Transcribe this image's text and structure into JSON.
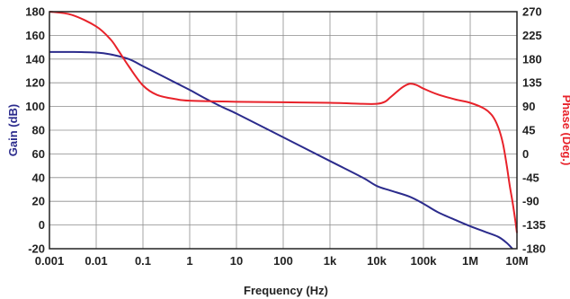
{
  "chart_data": {
    "type": "line",
    "title": "",
    "xlabel": "Frequency (Hz)",
    "ylabel_left": "Gain (dB)",
    "ylabel_right": "Phase (Deg.)",
    "x_scale": "log",
    "xlim": [
      0.001,
      10000000
    ],
    "ylim_left": [
      -20,
      180
    ],
    "ylim_right": [
      -180,
      270
    ],
    "x_tick_labels": [
      "0.001",
      "0.01",
      "0.1",
      "1",
      "10",
      "100",
      "1k",
      "10k",
      "100k",
      "1M",
      "10M"
    ],
    "y_left_ticks": [
      -20,
      0,
      20,
      40,
      60,
      80,
      100,
      120,
      140,
      160,
      180
    ],
    "y_right_ticks": [
      -180,
      -135,
      -90,
      -45,
      0,
      45,
      90,
      135,
      180,
      225,
      270
    ],
    "grid": true,
    "legend": "none",
    "colors": {
      "gain": "#2b2b8c",
      "phase": "#e8222a",
      "grid": "#8c8c8c",
      "axis": "#222222"
    },
    "series": [
      {
        "axis": "left",
        "x": [
          0.001,
          0.003,
          0.01,
          0.02,
          0.05,
          0.1,
          0.2,
          0.5,
          1,
          2,
          5,
          10,
          100,
          1000,
          5000,
          10000,
          20000,
          50000,
          100000,
          200000,
          500000,
          1000000,
          2000000,
          4000000,
          6000000,
          8000000
        ],
        "y": [
          146,
          146,
          145.5,
          144,
          140,
          134,
          128,
          120,
          114,
          107.5,
          99.5,
          94,
          74,
          54,
          40,
          33,
          29,
          24,
          18,
          11,
          4,
          -1,
          -5.5,
          -10,
          -15,
          -20
        ]
      },
      {
        "axis": "right",
        "x": [
          0.001,
          0.003,
          0.01,
          0.02,
          0.03,
          0.05,
          0.1,
          0.2,
          0.5,
          1,
          10,
          100,
          1000,
          5000,
          10000,
          15000,
          20000,
          35000,
          50000,
          70000,
          100000,
          200000,
          500000,
          1000000,
          2000000,
          3000000,
          4000000,
          5000000,
          6000000,
          7000000,
          8000000,
          9000000,
          10000000
        ],
        "y": [
          270,
          264,
          242,
          218,
          196,
          166,
          130,
          112,
          104,
          101,
          99,
          98,
          97,
          95,
          95,
          99,
          108,
          126,
          133,
          131,
          124,
          113,
          103,
          97,
          86,
          72,
          50,
          20,
          -20,
          -60,
          -90,
          -120,
          -150
        ]
      }
    ]
  }
}
